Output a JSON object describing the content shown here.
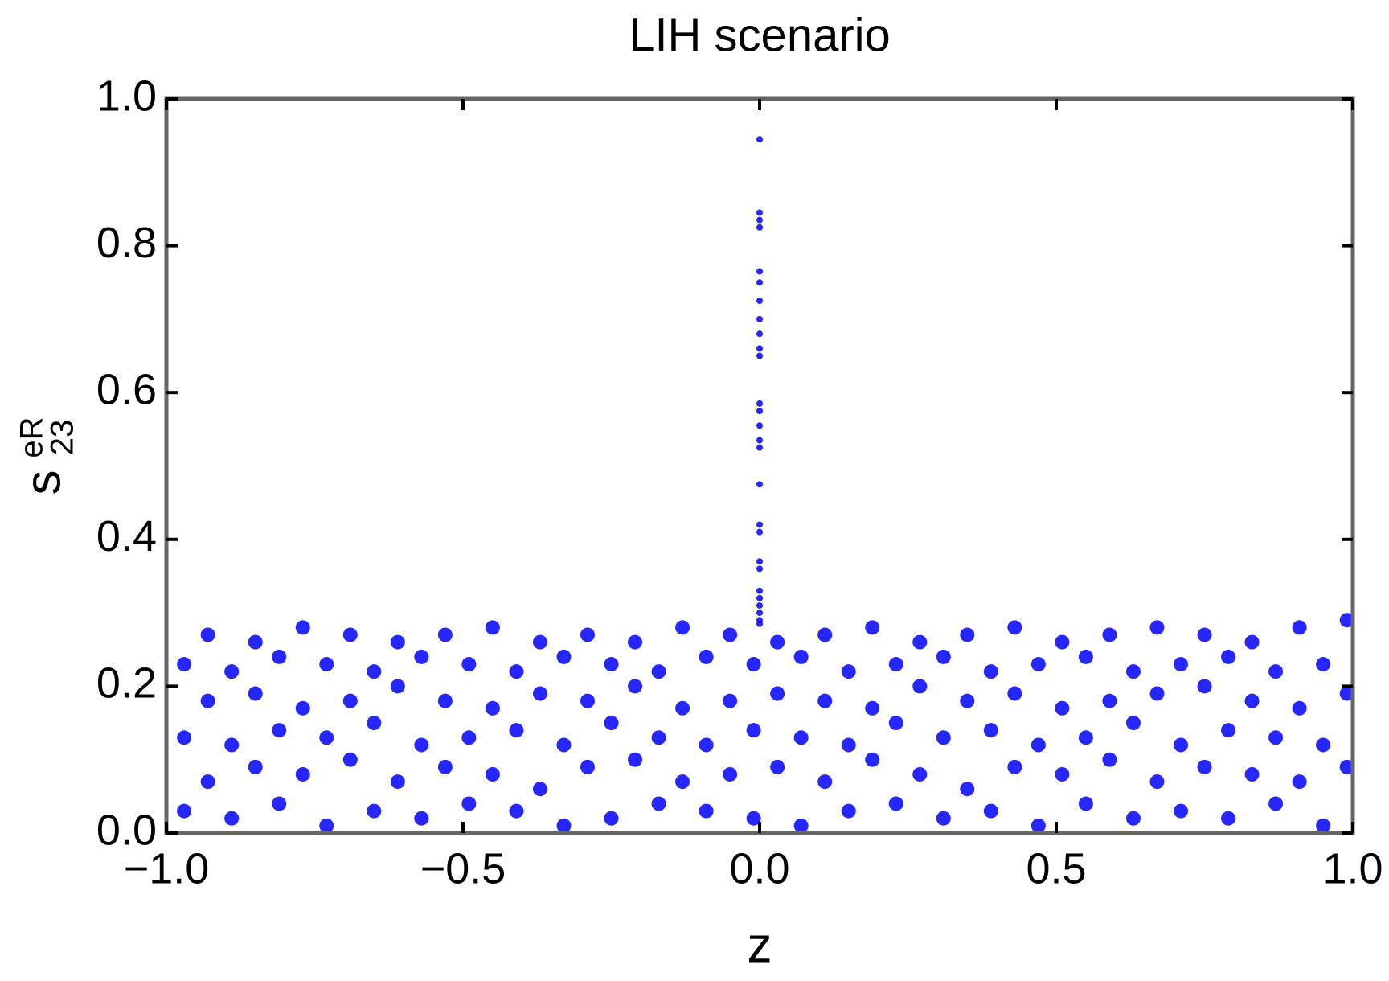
{
  "chart_data": {
    "type": "scatter",
    "title": "LIH scenario",
    "xlabel": "z",
    "ylabel": {
      "base": "s",
      "sup": "eR",
      "sub": "23"
    },
    "color": "#0000ff",
    "xlim": [
      -1,
      1
    ],
    "ylim": [
      0,
      1
    ],
    "xticks": [
      {
        "value": -1,
        "label": "−1.0"
      },
      {
        "value": -0.5,
        "label": "−0.5"
      },
      {
        "value": 0,
        "label": "0.0"
      },
      {
        "value": 0.5,
        "label": "0.5"
      },
      {
        "value": 1,
        "label": "1.0"
      }
    ],
    "yticks": [
      {
        "value": 0,
        "label": "0.0"
      },
      {
        "value": 0.2,
        "label": "0.2"
      },
      {
        "value": 0.4,
        "label": "0.4"
      },
      {
        "value": 0.6,
        "label": "0.6"
      },
      {
        "value": 0.8,
        "label": "0.8"
      },
      {
        "value": 1,
        "label": "1.0"
      }
    ],
    "x": [
      -0.97,
      -0.89,
      -0.81,
      -0.73,
      -0.65,
      -0.57,
      -0.49,
      -0.41,
      -0.33,
      -0.25,
      -0.17,
      -0.09,
      -0.01,
      0.07,
      0.15,
      0.23,
      0.31,
      0.39,
      0.47,
      0.55,
      0.63,
      0.71,
      0.79,
      0.87,
      0.95,
      -0.93,
      -0.85,
      -0.77,
      -0.69,
      -0.61,
      -0.53,
      -0.45,
      -0.37,
      -0.29,
      -0.21,
      -0.13,
      -0.05,
      0.03,
      0.11,
      0.19,
      0.27,
      0.35,
      0.43,
      0.51,
      0.59,
      0.67,
      0.75,
      0.83,
      0.91,
      0.99,
      -0.97,
      -0.89,
      -0.81,
      -0.73,
      -0.65,
      -0.57,
      -0.49,
      -0.41,
      -0.33,
      -0.25,
      -0.17,
      -0.09,
      -0.01,
      0.07,
      0.15,
      0.23,
      0.31,
      0.39,
      0.47,
      0.55,
      0.63,
      0.71,
      0.79,
      0.87,
      0.95,
      -0.93,
      -0.85,
      -0.77,
      -0.69,
      -0.61,
      -0.53,
      -0.45,
      -0.37,
      -0.29,
      -0.21,
      -0.13,
      -0.05,
      0.03,
      0.11,
      0.19,
      0.27,
      0.35,
      0.43,
      0.51,
      0.59,
      0.67,
      0.75,
      0.83,
      0.91,
      0.99,
      -0.97,
      -0.89,
      -0.81,
      -0.73,
      -0.65,
      -0.57,
      -0.49,
      -0.41,
      -0.33,
      -0.25,
      -0.17,
      -0.09,
      -0.01,
      0.07,
      0.15,
      0.23,
      0.31,
      0.39,
      0.47,
      0.55,
      0.63,
      0.71,
      0.79,
      0.87,
      0.95,
      -0.93,
      -0.85,
      -0.77,
      -0.69,
      -0.61,
      -0.53,
      -0.45,
      -0.37,
      -0.29,
      -0.21,
      -0.13,
      -0.05,
      0.03,
      0.11,
      0.19,
      0.27,
      0.35,
      0.43,
      0.51,
      0.59,
      0.67,
      0.75,
      0.83,
      0.91,
      0.99,
      0,
      0,
      0,
      0,
      0,
      0,
      0,
      0,
      0,
      0,
      0,
      0,
      0,
      0,
      0,
      0,
      0,
      0,
      0,
      0,
      0,
      0,
      0,
      0,
      0,
      0,
      0
    ],
    "values": [
      0.03,
      0.02,
      0.04,
      0.01,
      0.03,
      0.02,
      0.04,
      0.03,
      0.01,
      0.02,
      0.04,
      0.03,
      0.02,
      0.01,
      0.03,
      0.04,
      0.02,
      0.03,
      0.01,
      0.04,
      0.02,
      0.03,
      0.02,
      0.04,
      0.01,
      0.07,
      0.09,
      0.08,
      0.1,
      0.07,
      0.09,
      0.08,
      0.06,
      0.09,
      0.1,
      0.07,
      0.08,
      0.09,
      0.07,
      0.1,
      0.08,
      0.06,
      0.09,
      0.08,
      0.1,
      0.07,
      0.09,
      0.08,
      0.07,
      0.09,
      0.13,
      0.12,
      0.14,
      0.13,
      0.15,
      0.12,
      0.13,
      0.14,
      0.12,
      0.15,
      0.13,
      0.12,
      0.14,
      0.13,
      0.12,
      0.15,
      0.13,
      0.14,
      0.12,
      0.13,
      0.15,
      0.12,
      0.14,
      0.13,
      0.12,
      0.18,
      0.19,
      0.17,
      0.18,
      0.2,
      0.18,
      0.17,
      0.19,
      0.18,
      0.2,
      0.17,
      0.18,
      0.19,
      0.18,
      0.17,
      0.2,
      0.18,
      0.19,
      0.17,
      0.18,
      0.19,
      0.2,
      0.18,
      0.17,
      0.19,
      0.23,
      0.22,
      0.24,
      0.23,
      0.22,
      0.24,
      0.23,
      0.22,
      0.24,
      0.23,
      0.22,
      0.24,
      0.23,
      0.24,
      0.22,
      0.23,
      0.24,
      0.22,
      0.23,
      0.24,
      0.22,
      0.23,
      0.24,
      0.22,
      0.23,
      0.27,
      0.26,
      0.28,
      0.27,
      0.26,
      0.27,
      0.28,
      0.26,
      0.27,
      0.26,
      0.28,
      0.27,
      0.26,
      0.27,
      0.28,
      0.26,
      0.27,
      0.28,
      0.26,
      0.27,
      0.28,
      0.27,
      0.26,
      0.28,
      0.29,
      0.945,
      0.845,
      0.835,
      0.825,
      0.765,
      0.75,
      0.725,
      0.7,
      0.68,
      0.66,
      0.65,
      0.585,
      0.575,
      0.555,
      0.535,
      0.525,
      0.475,
      0.42,
      0.41,
      0.37,
      0.36,
      0.33,
      0.32,
      0.31,
      0.3,
      0.29,
      0.285
    ]
  }
}
